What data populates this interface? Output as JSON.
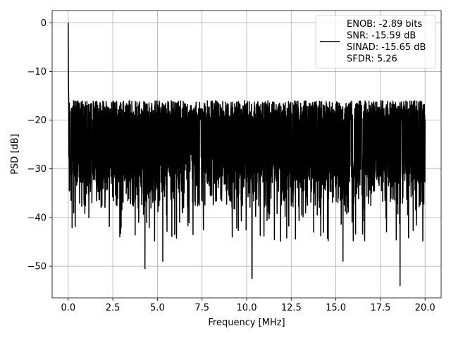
{
  "chart_data": {
    "type": "line",
    "title": "",
    "xlabel": "Frequency [MHz]",
    "ylabel": "PSD [dB]",
    "xlim": [
      -0.9,
      20.9
    ],
    "ylim": [
      -56.5,
      2.5
    ],
    "xticks": [
      0.0,
      2.5,
      5.0,
      7.5,
      10.0,
      12.5,
      15.0,
      17.5,
      20.0
    ],
    "xtick_labels": [
      "0.0",
      "2.5",
      "5.0",
      "7.5",
      "10.0",
      "12.5",
      "15.0",
      "17.5",
      "20.0"
    ],
    "yticks": [
      0,
      -10,
      -20,
      -30,
      -40,
      -50
    ],
    "ytick_labels": [
      "0",
      "−10",
      "−20",
      "−30",
      "−40",
      "−50"
    ],
    "grid": true,
    "legend_position": "top-right",
    "series": [
      {
        "name": "ENOB: -2.89 bits\nSNR: -15.59 dB\nSINAD: -15.65 dB\nSFDR: 5.26",
        "color": "#000000",
        "noise_floor_band": [
          -35,
          -16
        ],
        "peak": {
          "x": 0.0,
          "y": 0.0
        },
        "notable_dips": [
          {
            "x": 4.3,
            "y": -50.5
          },
          {
            "x": 5.3,
            "y": -49.0
          },
          {
            "x": 10.3,
            "y": -52.5
          },
          {
            "x": 15.4,
            "y": -49.0
          },
          {
            "x": 18.6,
            "y": -54.0
          }
        ]
      }
    ]
  },
  "legend": {
    "lines": [
      "ENOB: -2.89 bits",
      "SNR: -15.59 dB",
      "SINAD: -15.65 dB",
      "SFDR: 5.26"
    ]
  }
}
